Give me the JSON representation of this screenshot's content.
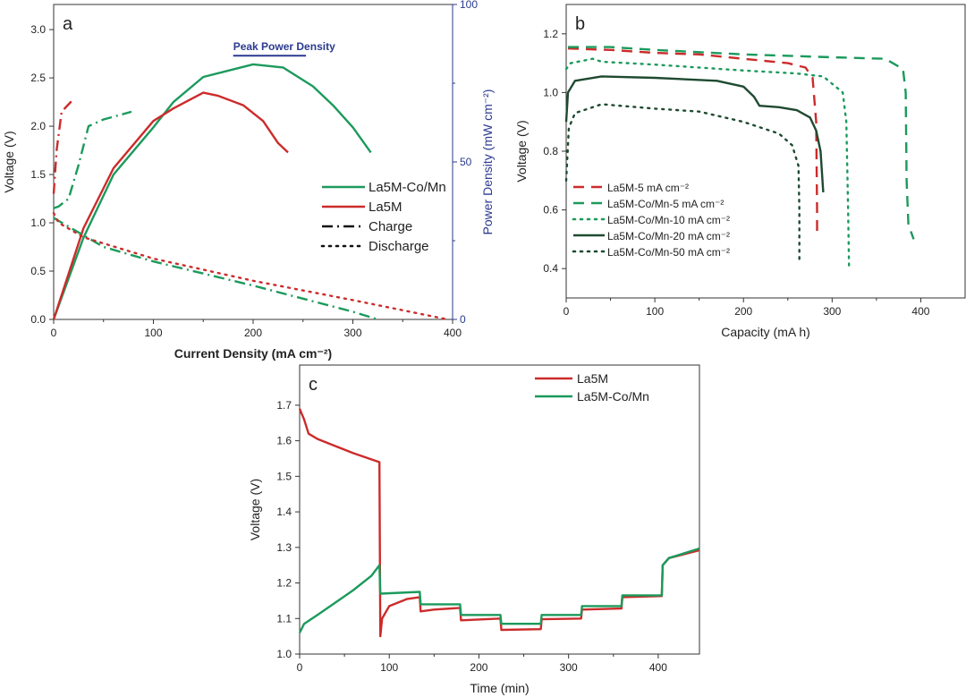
{
  "chart_data": [
    {
      "panel": "a",
      "type": "line",
      "xlabel": "Current Density (mA cm⁻²)",
      "ylabel": "Voltage (V)",
      "y2label": "Power Density (mW cm⁻²)",
      "xlim": [
        0,
        400
      ],
      "ylim": [
        0,
        3.26
      ],
      "y2lim": [
        0,
        100
      ],
      "xticks": [
        0,
        100,
        200,
        300,
        400
      ],
      "yticks": [
        0.0,
        0.5,
        1.0,
        1.5,
        2.0,
        2.5,
        3.0
      ],
      "ytick_labels": [
        "0.0",
        "0.5",
        "1.0",
        "1.5",
        "2.0",
        "2.5",
        "3.0"
      ],
      "y2ticks": [
        0,
        50,
        100
      ],
      "grid": false,
      "legend_position": "right",
      "annotation": {
        "text": "Peak Power Density",
        "x_range": [
          180,
          253
        ],
        "y": 2.73,
        "color": "#2b3a8f"
      },
      "legend": [
        {
          "label": "La5M-Co/Mn",
          "style": "solid",
          "color": "#1b9a5c"
        },
        {
          "label": "La5M",
          "style": "solid",
          "color": "#cc2b2b"
        },
        {
          "label": "Charge",
          "style": "dashdot",
          "color": "#111111"
        },
        {
          "label": "Discharge",
          "style": "dotted",
          "color": "#111111"
        }
      ],
      "series": [
        {
          "sample": "La5M-Co/Mn",
          "kind": "power",
          "axis": "y2",
          "color": "#1b9a5c",
          "style": "solid",
          "x": [
            0,
            30,
            60,
            100,
            120,
            150,
            200,
            230,
            260,
            280,
            300,
            318
          ],
          "y": [
            0,
            26,
            46,
            61,
            69,
            77,
            81,
            80,
            74,
            68,
            61,
            53
          ]
        },
        {
          "sample": "La5M",
          "kind": "power",
          "axis": "y2",
          "color": "#cc2b2b",
          "style": "solid",
          "x": [
            0,
            30,
            60,
            100,
            120,
            150,
            165,
            190,
            210,
            225,
            235
          ],
          "y": [
            0,
            29,
            48,
            63,
            67,
            72,
            71,
            68,
            63,
            56,
            53
          ]
        },
        {
          "sample": "La5M-Co/Mn",
          "kind": "charge",
          "axis": "y",
          "color": "#1b9a5c",
          "style": "dashdot",
          "x": [
            0,
            5,
            15,
            25,
            35,
            50,
            78
          ],
          "y": [
            1.15,
            1.17,
            1.25,
            1.6,
            2.0,
            2.07,
            2.15
          ]
        },
        {
          "sample": "La5M",
          "kind": "charge",
          "axis": "y",
          "color": "#cc2b2b",
          "style": "dashdot",
          "x": [
            0,
            3,
            8,
            18
          ],
          "y": [
            1.3,
            1.75,
            2.15,
            2.26
          ]
        },
        {
          "sample": "La5M-Co/Mn",
          "kind": "discharge",
          "axis": "y",
          "color": "#1b9a5c",
          "style": "dashdot",
          "x": [
            0,
            50,
            100,
            200,
            300,
            325
          ],
          "y": [
            1.05,
            0.75,
            0.6,
            0.35,
            0.08,
            0
          ]
        },
        {
          "sample": "La5M",
          "kind": "discharge",
          "axis": "y",
          "color": "#cc2b2b",
          "style": "dotted",
          "x": [
            0,
            5,
            30,
            100,
            200,
            300,
            395
          ],
          "y": [
            1.1,
            1.0,
            0.85,
            0.63,
            0.4,
            0.2,
            0
          ]
        }
      ]
    },
    {
      "panel": "b",
      "type": "line",
      "xlabel": "Capacity (mA h)",
      "ylabel": "Voltage (V)",
      "xlim": [
        0,
        450
      ],
      "ylim": [
        0.3,
        1.3
      ],
      "xticks": [
        0,
        100,
        200,
        300,
        400
      ],
      "yticks": [
        0.4,
        0.6,
        0.8,
        1.0,
        1.2
      ],
      "ytick_labels": [
        "0.4",
        "0.6",
        "0.8",
        "1.0",
        "1.2"
      ],
      "grid": false,
      "legend_position": "bottom-left",
      "series": [
        {
          "name": "La5M-5 mA cm⁻²",
          "color": "#cc2b2b",
          "style": "dashed",
          "x": [
            2,
            50,
            100,
            150,
            200,
            250,
            270,
            278,
            282,
            283,
            283
          ],
          "y": [
            1.15,
            1.145,
            1.135,
            1.13,
            1.115,
            1.1,
            1.085,
            1.05,
            0.9,
            0.6,
            0.52
          ]
        },
        {
          "name": "La5M-Co/Mn-5 mA cm⁻²",
          "color": "#1b9a5c",
          "style": "dashed",
          "x": [
            2,
            50,
            100,
            200,
            300,
            360,
            380,
            383,
            384,
            386,
            392
          ],
          "y": [
            1.155,
            1.155,
            1.145,
            1.13,
            1.12,
            1.115,
            1.08,
            1.0,
            0.7,
            0.55,
            0.5
          ]
        },
        {
          "name": "La5M-Co/Mn-10 mA cm⁻²",
          "color": "#1b9a5c",
          "style": "dotted",
          "x": [
            0,
            5,
            30,
            40,
            100,
            200,
            260,
            290,
            312,
            316,
            318,
            319
          ],
          "y": [
            1.08,
            1.1,
            1.115,
            1.105,
            1.095,
            1.075,
            1.065,
            1.055,
            1.0,
            0.9,
            0.6,
            0.41
          ]
        },
        {
          "name": "La5M-Co/Mn-20 mA cm⁻²",
          "color": "#1e4a30",
          "style": "solid",
          "x": [
            0,
            2,
            10,
            40,
            100,
            170,
            200,
            212,
            218,
            240,
            260,
            275,
            282,
            287,
            290
          ],
          "y": [
            0.9,
            1.0,
            1.04,
            1.055,
            1.05,
            1.04,
            1.02,
            0.985,
            0.955,
            0.95,
            0.94,
            0.915,
            0.87,
            0.8,
            0.66
          ]
        },
        {
          "name": "La5M-Co/Mn-50 mA cm⁻²",
          "color": "#1e4a30",
          "style": "dotted",
          "x": [
            0,
            3,
            10,
            40,
            100,
            150,
            200,
            240,
            255,
            262,
            263,
            263
          ],
          "y": [
            0.7,
            0.88,
            0.93,
            0.96,
            0.945,
            0.935,
            0.9,
            0.86,
            0.82,
            0.75,
            0.6,
            0.42
          ]
        }
      ]
    },
    {
      "panel": "c",
      "type": "line",
      "xlabel": "Time (min)",
      "ylabel": "Voltage (V)",
      "xlim": [
        0,
        446
      ],
      "ylim": [
        1.0,
        1.813
      ],
      "xticks": [
        0,
        100,
        200,
        300,
        400
      ],
      "yticks": [
        1.0,
        1.1,
        1.2,
        1.3,
        1.4,
        1.5,
        1.6,
        1.7
      ],
      "ytick_labels": [
        "1.0",
        "1.1",
        "1.2",
        "1.3",
        "1.4",
        "1.5",
        "1.6",
        "1.7"
      ],
      "grid": false,
      "legend_position": "top-right",
      "series": [
        {
          "name": "La5M",
          "color": "#cc2b2b",
          "style": "solid",
          "x": [
            0,
            5,
            10,
            20,
            40,
            60,
            89,
            90,
            92,
            100,
            120,
            134,
            135,
            150,
            179,
            180,
            224,
            225,
            269,
            270,
            314,
            315,
            359,
            360,
            404,
            405,
            412,
            446
          ],
          "y": [
            1.69,
            1.66,
            1.62,
            1.605,
            1.585,
            1.565,
            1.54,
            1.05,
            1.1,
            1.135,
            1.155,
            1.16,
            1.12,
            1.125,
            1.13,
            1.095,
            1.1,
            1.068,
            1.07,
            1.098,
            1.1,
            1.125,
            1.128,
            1.16,
            1.163,
            1.25,
            1.27,
            1.292
          ]
        },
        {
          "name": "La5M-Co/Mn",
          "color": "#1b9a5c",
          "style": "solid",
          "x": [
            0,
            5,
            20,
            40,
            60,
            80,
            89,
            90,
            134,
            135,
            179,
            180,
            224,
            225,
            269,
            270,
            314,
            315,
            359,
            360,
            404,
            405,
            412,
            446
          ],
          "y": [
            1.06,
            1.085,
            1.11,
            1.145,
            1.18,
            1.22,
            1.25,
            1.17,
            1.175,
            1.14,
            1.14,
            1.11,
            1.11,
            1.085,
            1.085,
            1.11,
            1.11,
            1.135,
            1.135,
            1.165,
            1.165,
            1.25,
            1.27,
            1.297
          ]
        }
      ]
    }
  ]
}
